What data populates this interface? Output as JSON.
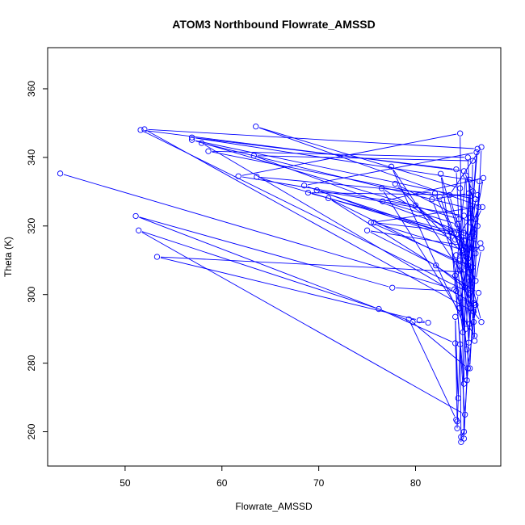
{
  "chart_data": {
    "type": "line",
    "title": "ATOM3 Northbound Flowrate_AMSSD",
    "xlabel": "Flowrate_AMSSD",
    "ylabel": "Theta (K)",
    "xlim": [
      42.0,
      88.8
    ],
    "ylim": [
      250.0,
      372.0
    ],
    "xticks": [
      50,
      60,
      70,
      80
    ],
    "yticks": [
      260,
      280,
      300,
      320,
      340,
      360
    ],
    "grid": false,
    "line_color": "#0000ff",
    "marker": "open-circle",
    "series": [
      {
        "points": [
          [
            43.3,
            335.3
          ],
          [
            84.0,
            301.5
          ],
          [
            85.2,
            334.7
          ],
          [
            85.6,
            300.5
          ],
          [
            51.6,
            348.0
          ],
          [
            85.0,
            336.0
          ],
          [
            85.9,
            330.1
          ],
          [
            86.0,
            295.0
          ],
          [
            52.0,
            348.2
          ],
          [
            86.4,
            342.5
          ],
          [
            85.2,
            302.5
          ],
          [
            86.2,
            327.8
          ],
          [
            56.9,
            345.1
          ],
          [
            84.5,
            322.0
          ],
          [
            85.5,
            286.0
          ],
          [
            86.6,
            333.0
          ],
          [
            56.9,
            345.8
          ],
          [
            84.2,
            336.5
          ],
          [
            85.3,
            275.0
          ],
          [
            86.2,
            297.0
          ],
          [
            57.9,
            344.2
          ],
          [
            85.7,
            325.0
          ],
          [
            85.8,
            313.5
          ],
          [
            85.4,
            340.0
          ],
          [
            58.6,
            341.8
          ],
          [
            82.5,
            328.5
          ],
          [
            84.8,
            312.0
          ],
          [
            86.9,
            325.5
          ],
          [
            63.5,
            349.0
          ],
          [
            84.6,
            331.0
          ],
          [
            85.6,
            291.5
          ],
          [
            85.9,
            339.0
          ],
          [
            63.3,
            340.5
          ],
          [
            86.0,
            317.0
          ],
          [
            85.0,
            258.0
          ],
          [
            84.6,
            347.0
          ],
          [
            61.7,
            334.5
          ],
          [
            80.0,
            326.0
          ],
          [
            86.2,
            312.0
          ],
          [
            86.7,
            315.0
          ],
          [
            63.6,
            334.3
          ],
          [
            82.0,
            329.5
          ],
          [
            85.4,
            308.5
          ],
          [
            86.3,
            341.5
          ],
          [
            68.5,
            331.8
          ],
          [
            84.1,
            316.0
          ],
          [
            85.7,
            322.5
          ],
          [
            86.4,
            329.0
          ],
          [
            68.9,
            329.7
          ],
          [
            83.6,
            318.5
          ],
          [
            85.0,
            274.0
          ],
          [
            85.2,
            316.0
          ],
          [
            69.8,
            330.4
          ],
          [
            85.0,
            323.0
          ],
          [
            86.0,
            292.0
          ],
          [
            86.5,
            300.5
          ],
          [
            71.0,
            328.1
          ],
          [
            85.3,
            308.0
          ],
          [
            85.6,
            333.5
          ],
          [
            86.1,
            288.0
          ],
          [
            76.5,
            331.0
          ],
          [
            84.0,
            318.0
          ],
          [
            85.6,
            304.0
          ],
          [
            85.2,
            290.0
          ],
          [
            77.5,
            337.3
          ],
          [
            84.6,
            307.0
          ],
          [
            86.1,
            286.5
          ],
          [
            85.7,
            321.0
          ],
          [
            77.9,
            332.3
          ],
          [
            85.4,
            310.5
          ],
          [
            84.5,
            296.0
          ],
          [
            87.0,
            334.0
          ],
          [
            76.6,
            327.2
          ],
          [
            84.3,
            320.5
          ],
          [
            85.1,
            314.0
          ],
          [
            86.5,
            325.5
          ],
          [
            75.4,
            321.0
          ],
          [
            85.9,
            308.0
          ],
          [
            84.6,
            310.0
          ],
          [
            85.0,
            318.0
          ],
          [
            75.7,
            321.0
          ],
          [
            84.9,
            313.0
          ],
          [
            86.2,
            304.0
          ],
          [
            86.8,
            313.5
          ],
          [
            75.0,
            318.7
          ],
          [
            82.1,
            308.5
          ],
          [
            85.1,
            302.0
          ],
          [
            85.5,
            329.5
          ],
          [
            81.7,
            327.8
          ],
          [
            85.5,
            300.0
          ],
          [
            86.0,
            297.5
          ],
          [
            86.8,
            343.0
          ],
          [
            83.5,
            329.0
          ],
          [
            85.2,
            311.0
          ],
          [
            86.4,
            320.0
          ],
          [
            85.6,
            278.5
          ],
          [
            82.6,
            335.2
          ],
          [
            85.8,
            305.0
          ],
          [
            86.2,
            322.0
          ],
          [
            84.9,
            289.0
          ],
          [
            84.1,
            305.5
          ],
          [
            86.1,
            297.0
          ],
          [
            84.6,
            299.0
          ],
          [
            85.3,
            284.0
          ],
          [
            84.2,
            311.5
          ],
          [
            85.7,
            296.0
          ],
          [
            86.8,
            292.0
          ],
          [
            85.5,
            306.5
          ],
          [
            53.3,
            311.0
          ],
          [
            80.4,
            292.5
          ],
          [
            81.3,
            291.8
          ],
          [
            79.7,
            292.0
          ],
          [
            51.1,
            322.9
          ],
          [
            77.6,
            302.0
          ],
          [
            84.2,
            301.0
          ],
          [
            85.1,
            265.0
          ],
          [
            51.4,
            318.7
          ],
          [
            76.2,
            295.8
          ],
          [
            84.1,
            285.8
          ],
          [
            84.4,
            269.8
          ],
          [
            84.1,
            293.5
          ],
          [
            84.3,
            263.0
          ],
          [
            84.3,
            261.0
          ],
          [
            84.6,
            285.5
          ],
          [
            84.7,
            257.0
          ],
          [
            84.7,
            258.5
          ],
          [
            85.0,
            260.0
          ],
          [
            85.4,
            278.5
          ],
          [
            79.3,
            292.8
          ],
          [
            84.2,
            263.5
          ]
        ]
      }
    ]
  }
}
